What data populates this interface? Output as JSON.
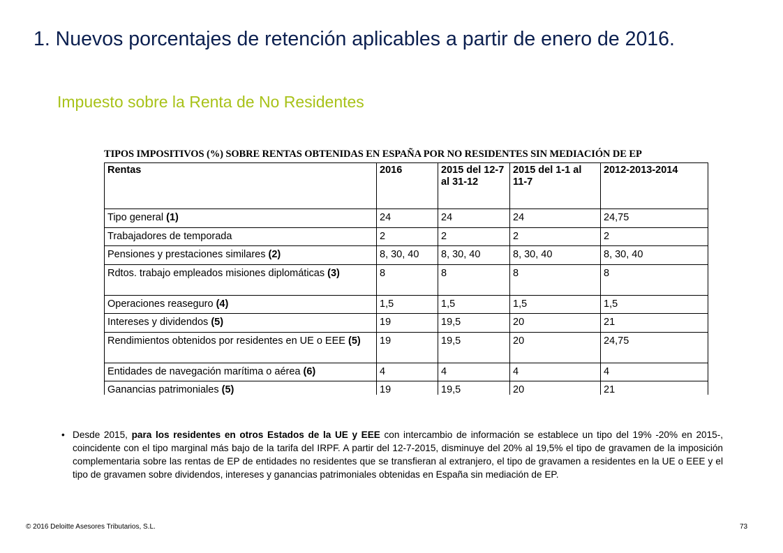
{
  "slide": {
    "title": "1. Nuevos porcentajes de retención aplicables a partir de enero de 2016.",
    "subtitle": "Impuesto sobre la Renta de No Residentes"
  },
  "table": {
    "caption": "TIPOS IMPOSITIVOS (%) SOBRE RENTAS OBTENIDAS EN ESPAÑA POR NO RESIDENTES SIN MEDIACIÓN DE EP",
    "headers": [
      "Rentas",
      "2016",
      "2015 del 12-7 al 31-12",
      "2015 del 1-1 al 11-7",
      "2012-2013-2014"
    ],
    "rows": [
      {
        "label": "Tipo general",
        "note": "(1)",
        "values": [
          "24",
          "24",
          "24",
          "24,75"
        ]
      },
      {
        "label": "Trabajadores de temporada",
        "note": "",
        "values": [
          "2",
          "2",
          "2",
          "2"
        ]
      },
      {
        "label": "Pensiones y prestaciones similares",
        "note": "(2)",
        "values": [
          "8, 30, 40",
          "8, 30, 40",
          "8, 30, 40",
          "8, 30, 40"
        ]
      },
      {
        "label": "Rdtos. trabajo empleados misiones diplomáticas",
        "note": "(3)",
        "values": [
          "8",
          "8",
          "8",
          "8"
        ]
      },
      {
        "label": "Operaciones reaseguro",
        "note": "(4)",
        "values": [
          "1,5",
          "1,5",
          "1,5",
          "1,5"
        ]
      },
      {
        "label": "Intereses y dividendos",
        "note": "(5)",
        "values": [
          "19",
          "19,5",
          "20",
          "21"
        ]
      },
      {
        "label": "Rendimientos obtenidos por residentes en UE o EEE",
        "note": "(5)",
        "values": [
          "19",
          "19,5",
          "20",
          "24,75"
        ]
      },
      {
        "label": "Entidades de navegación marítima o aérea",
        "note": "(6)",
        "values": [
          "4",
          "4",
          "4",
          "4"
        ]
      },
      {
        "label": "Ganancias patrimoniales",
        "note": "(5)",
        "values": [
          "19",
          "19,5",
          "20",
          "21"
        ]
      }
    ]
  },
  "body": {
    "bullet_symbol": "•",
    "prefix": "Desde 2015, ",
    "bold": "para los residentes en otros Estados de la UE y EEE",
    "rest": " con intercambio de información se establece un tipo del 19% -20% en 2015-, coincidente con el tipo marginal más bajo de la tarifa del IRPF. A partir del 12-7-2015, disminuye del 20% al 19,5% el tipo de gravamen de la imposición complementaria sobre las rentas de EP de entidades no residentes que se transfieran al extranjero, el tipo de gravamen a residentes en la UE o EEE y el tipo de gravamen sobre dividendos, intereses y ganancias patrimoniales obtenidas en España sin mediación de EP."
  },
  "footer": {
    "copyright": "© 2016 Deloitte Asesores Tributarios, S.L.",
    "page_number": "73"
  },
  "colors": {
    "title": "#0b1f4f",
    "subtitle": "#a8c219"
  }
}
